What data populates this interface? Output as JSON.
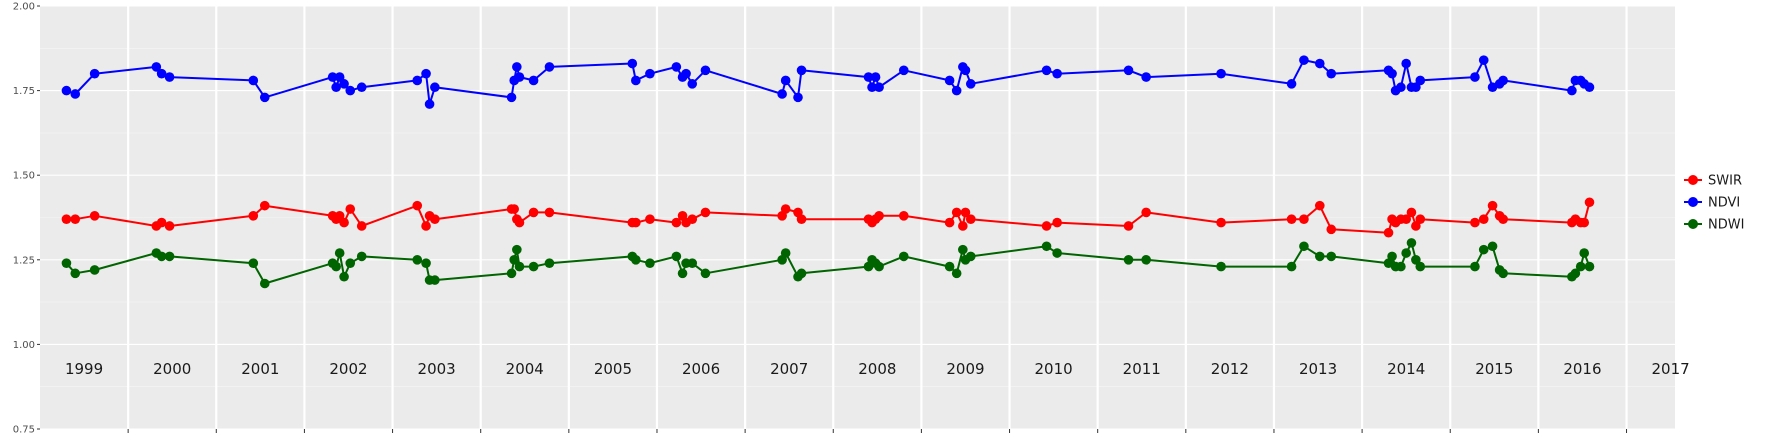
{
  "chart_data": {
    "type": "line",
    "title": "",
    "xlabel": "",
    "ylabel": "",
    "ylim": [
      0.75,
      2.0
    ],
    "yticks": [
      "0.75",
      "1.00",
      "1.25",
      "1.50",
      "1.75",
      "2.00"
    ],
    "year_labels": [
      "1999",
      "2000",
      "2001",
      "2002",
      "2003",
      "2004",
      "2005",
      "2006",
      "2007",
      "2008",
      "2009",
      "2010",
      "2011",
      "2012",
      "2013",
      "2014",
      "2015",
      "2016",
      "2017"
    ],
    "xlim": [
      1999.0,
      2017.55
    ],
    "grid": true,
    "legend_position": "right",
    "x": [
      1999.3,
      1999.4,
      1999.62,
      2000.32,
      2000.38,
      2000.47,
      2001.42,
      2001.55,
      2002.32,
      2002.36,
      2002.4,
      2002.45,
      2002.52,
      2002.65,
      2003.28,
      2003.38,
      2003.42,
      2003.48,
      2004.35,
      2004.38,
      2004.41,
      2004.44,
      2004.6,
      2004.78,
      2005.72,
      2005.76,
      2005.92,
      2006.22,
      2006.29,
      2006.33,
      2006.4,
      2006.55,
      2007.42,
      2007.46,
      2007.6,
      2007.64,
      2008.4,
      2008.44,
      2008.48,
      2008.52,
      2008.8,
      2009.32,
      2009.4,
      2009.47,
      2009.5,
      2009.56,
      2010.42,
      2010.54,
      2011.35,
      2011.55,
      2012.4,
      2013.2,
      2013.34,
      2013.52,
      2013.65,
      2014.3,
      2014.34,
      2014.38,
      2014.44,
      2014.5,
      2014.56,
      2014.61,
      2014.66,
      2015.28,
      2015.38,
      2015.48,
      2015.56,
      2015.6,
      2016.38,
      2016.42,
      2016.48,
      2016.52,
      2016.58
    ],
    "series": [
      {
        "name": "SWIR",
        "color": "#FF0000",
        "values": [
          1.37,
          1.37,
          1.38,
          1.35,
          1.36,
          1.35,
          1.38,
          1.41,
          1.38,
          1.37,
          1.38,
          1.36,
          1.4,
          1.35,
          1.41,
          1.35,
          1.38,
          1.37,
          1.4,
          1.4,
          1.37,
          1.36,
          1.39,
          1.39,
          1.36,
          1.36,
          1.37,
          1.36,
          1.38,
          1.36,
          1.37,
          1.39,
          1.38,
          1.4,
          1.39,
          1.37,
          1.37,
          1.36,
          1.37,
          1.38,
          1.38,
          1.36,
          1.39,
          1.35,
          1.39,
          1.37,
          1.35,
          1.36,
          1.35,
          1.39,
          1.36,
          1.37,
          1.37,
          1.41,
          1.34,
          1.33,
          1.37,
          1.36,
          1.37,
          1.37,
          1.39,
          1.35,
          1.37,
          1.36,
          1.37,
          1.41,
          1.38,
          1.37,
          1.36,
          1.37,
          1.36,
          1.36,
          1.42
        ]
      },
      {
        "name": "NDVI",
        "color": "#0000FF",
        "values": [
          1.75,
          1.74,
          1.8,
          1.82,
          1.8,
          1.79,
          1.78,
          1.73,
          1.79,
          1.76,
          1.79,
          1.77,
          1.75,
          1.76,
          1.78,
          1.8,
          1.71,
          1.76,
          1.73,
          1.78,
          1.82,
          1.79,
          1.78,
          1.82,
          1.83,
          1.78,
          1.8,
          1.82,
          1.79,
          1.8,
          1.77,
          1.81,
          1.74,
          1.78,
          1.73,
          1.81,
          1.79,
          1.76,
          1.79,
          1.76,
          1.81,
          1.78,
          1.75,
          1.82,
          1.81,
          1.77,
          1.81,
          1.8,
          1.81,
          1.79,
          1.8,
          1.77,
          1.84,
          1.83,
          1.8,
          1.81,
          1.8,
          1.75,
          1.76,
          1.83,
          1.76,
          1.76,
          1.78,
          1.79,
          1.84,
          1.76,
          1.77,
          1.78,
          1.75,
          1.78,
          1.78,
          1.77,
          1.76
        ]
      },
      {
        "name": "NDWI",
        "color": "#006400",
        "values": [
          1.24,
          1.21,
          1.22,
          1.27,
          1.26,
          1.26,
          1.24,
          1.18,
          1.24,
          1.23,
          1.27,
          1.2,
          1.24,
          1.26,
          1.25,
          1.24,
          1.19,
          1.19,
          1.21,
          1.25,
          1.28,
          1.23,
          1.23,
          1.24,
          1.26,
          1.25,
          1.24,
          1.26,
          1.21,
          1.24,
          1.24,
          1.21,
          1.25,
          1.27,
          1.2,
          1.21,
          1.23,
          1.25,
          1.24,
          1.23,
          1.26,
          1.23,
          1.21,
          1.28,
          1.25,
          1.26,
          1.29,
          1.27,
          1.25,
          1.25,
          1.23,
          1.23,
          1.29,
          1.26,
          1.26,
          1.24,
          1.26,
          1.23,
          1.23,
          1.27,
          1.3,
          1.25,
          1.23,
          1.23,
          1.28,
          1.29,
          1.22,
          1.21,
          1.2,
          1.21,
          1.23,
          1.27,
          1.23
        ]
      }
    ]
  }
}
